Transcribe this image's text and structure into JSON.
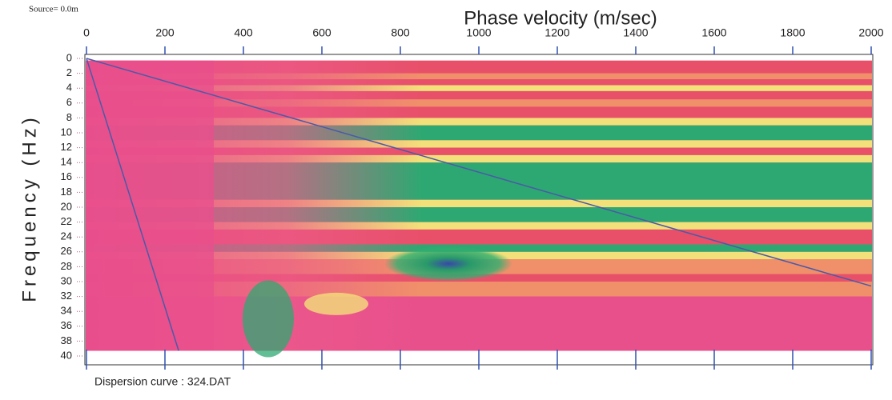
{
  "chart_data": {
    "type": "dispersion-image",
    "source": "Source= 0.0m",
    "title": "Phase velocity (m/sec)",
    "y_label": "Frequency (Hz)",
    "footer": "Dispersion curve : 324.DAT",
    "xlim": [
      0,
      2000
    ],
    "xticks": [
      0,
      200,
      400,
      600,
      800,
      1000,
      1200,
      1400,
      1600,
      1800,
      2000
    ],
    "ylim": [
      0,
      40
    ],
    "yticks": [
      0,
      2,
      4,
      6,
      8,
      10,
      12,
      14,
      16,
      18,
      20,
      22,
      24,
      26,
      28,
      30,
      32,
      34,
      36,
      38,
      40
    ],
    "lines": [
      {
        "color": "#4a5aa8",
        "x": [
          0,
          2000
        ],
        "y": [
          0,
          30.6
        ]
      },
      {
        "color": "#4a5aa8",
        "x": [
          0,
          235
        ],
        "y": [
          0,
          39.3
        ]
      }
    ]
  }
}
